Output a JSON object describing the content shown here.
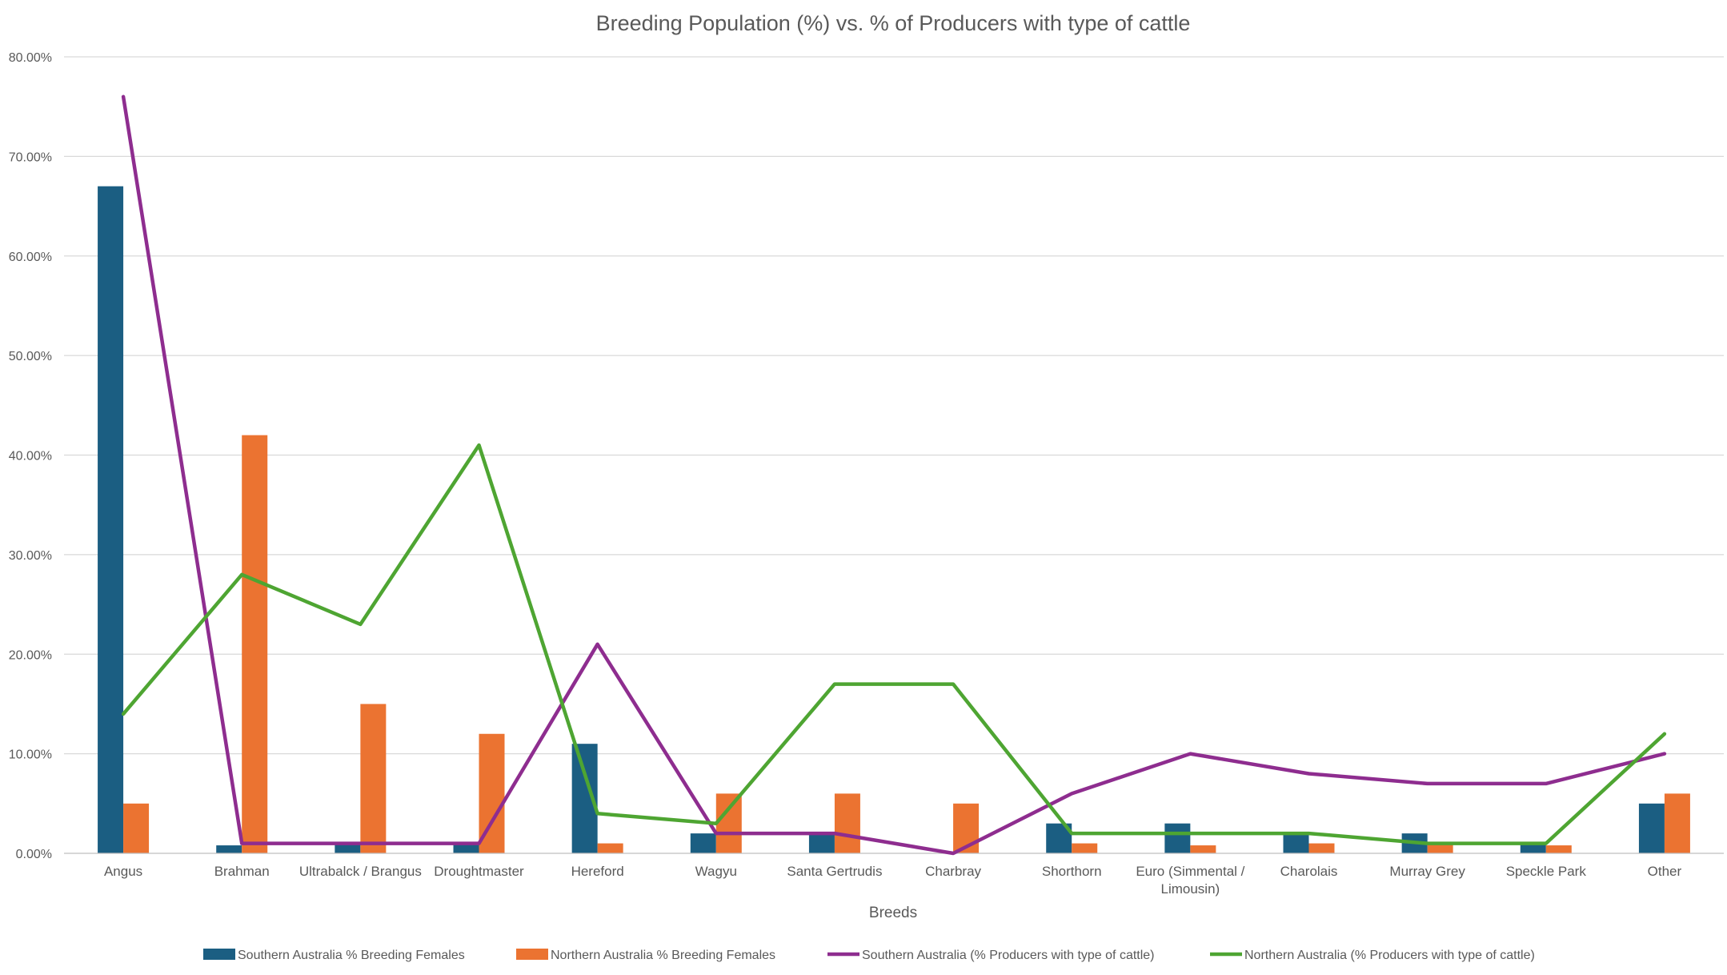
{
  "chart_data": {
    "type": "bar",
    "title": "Breeding Population (%) vs. % of Producers with type of cattle",
    "xlabel": "Breeds",
    "ylabel": "",
    "ylim": [
      0,
      80
    ],
    "yticks": [
      "0.00%",
      "10.00%",
      "20.00%",
      "30.00%",
      "40.00%",
      "50.00%",
      "60.00%",
      "70.00%",
      "80.00%"
    ],
    "grid": true,
    "legend_position": "bottom",
    "categories": [
      [
        "Angus"
      ],
      [
        "Brahman"
      ],
      [
        "Ultrabalck / Brangus"
      ],
      [
        "Droughtmaster"
      ],
      [
        "Hereford"
      ],
      [
        "Wagyu"
      ],
      [
        "Santa Gertrudis"
      ],
      [
        "Charbray"
      ],
      [
        "Shorthorn"
      ],
      [
        "Euro (Simmental /",
        "Limousin)"
      ],
      [
        "Charolais"
      ],
      [
        "Murray Grey"
      ],
      [
        "Speckle Park"
      ],
      [
        "Other"
      ]
    ],
    "series": [
      {
        "name": "Southern Australia % Breeding Females",
        "kind": "bar",
        "color": "#1b5e82",
        "values": [
          67,
          0.8,
          1,
          1,
          11,
          2,
          2,
          0,
          3,
          3,
          2,
          2,
          1,
          5
        ]
      },
      {
        "name": "Northern Australia % Breeding Females",
        "kind": "bar",
        "color": "#eb7331",
        "values": [
          5,
          42,
          15,
          12,
          1,
          6,
          6,
          5,
          1,
          0.8,
          1,
          1,
          0.8,
          6
        ]
      },
      {
        "name": "Southern Australia (% Producers with type of cattle)",
        "kind": "line",
        "color": "#8e2d8f",
        "values": [
          76,
          1,
          1,
          1,
          21,
          2,
          2,
          0,
          6,
          10,
          8,
          7,
          7,
          10
        ]
      },
      {
        "name": "Northern Australia (% Producers with type of cattle)",
        "kind": "line",
        "color": "#4ea532",
        "values": [
          14,
          28,
          23,
          41,
          4,
          3,
          17,
          17,
          2,
          2,
          2,
          1,
          1,
          12
        ]
      }
    ]
  }
}
